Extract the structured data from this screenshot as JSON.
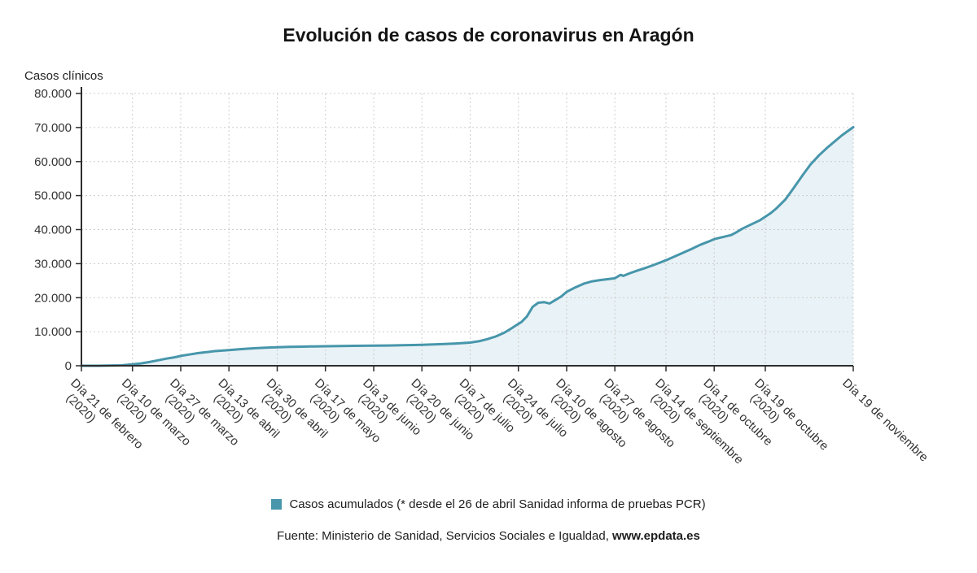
{
  "title": "Evolución de casos de coronavirus en Aragón",
  "y_axis_title": "Casos clínicos",
  "legend": {
    "swatch_color": "#4796ab",
    "label": "Casos acumulados (* desde el 26 de abril Sanidad informa de pruebas PCR)"
  },
  "source": {
    "prefix": "Fuente: Ministerio de Sanidad, Servicios Sociales e Igualdad, ",
    "bold": "www.epdata.es"
  },
  "chart_data": {
    "type": "area",
    "title": "Evolución de casos de coronavirus en Aragón",
    "xlabel": "",
    "ylabel": "Casos clínicos",
    "ylim": [
      0,
      80000
    ],
    "grid": "dotted",
    "legend_position": "bottom",
    "x_unit": "días desde el 21 de febrero de 2020",
    "x_start_label": "Día 21 de febrero (2020)",
    "x_end_label": "Día 19 de noviembre",
    "y_ticks": [
      0,
      10000,
      20000,
      30000,
      40000,
      50000,
      60000,
      70000,
      80000
    ],
    "y_tick_labels": [
      "0",
      "10.000",
      "20.000",
      "30.000",
      "40.000",
      "50.000",
      "60.000",
      "70.000",
      "80.000"
    ],
    "x_ticks": [
      {
        "day": 0,
        "label": "Día 21 de febrero",
        "sub": "(2020)"
      },
      {
        "day": 18,
        "label": "Día 10 de marzo",
        "sub": "(2020)"
      },
      {
        "day": 35,
        "label": "Día 27 de marzo",
        "sub": "(2020)"
      },
      {
        "day": 52,
        "label": "Día 13 de abril",
        "sub": "(2020)"
      },
      {
        "day": 69,
        "label": "Día 30 de abril",
        "sub": "(2020)"
      },
      {
        "day": 86,
        "label": "Día 17 de mayo",
        "sub": "(2020)"
      },
      {
        "day": 103,
        "label": "Día 3 de junio",
        "sub": "(2020)"
      },
      {
        "day": 120,
        "label": "Día 20 de junio",
        "sub": "(2020)"
      },
      {
        "day": 137,
        "label": "Día 7 de julio",
        "sub": "(2020)"
      },
      {
        "day": 154,
        "label": "Día 24 de julio",
        "sub": "(2020)"
      },
      {
        "day": 171,
        "label": "Día 10 de agosto",
        "sub": "(2020)"
      },
      {
        "day": 188,
        "label": "Día 27 de agosto",
        "sub": "(2020)"
      },
      {
        "day": 206,
        "label": "Día 14 de septiembre",
        "sub": "(2020)"
      },
      {
        "day": 223,
        "label": "Día 1 de octubre",
        "sub": "(2020)"
      },
      {
        "day": 241,
        "label": "Día 19 de octubre",
        "sub": "(2020)"
      },
      {
        "day": 272,
        "label": "Día 19 de noviembre",
        "sub": ""
      }
    ],
    "series": [
      {
        "name": "Casos acumulados (* desde el 26 de abril Sanidad informa de pruebas PCR)",
        "color": "#4796ab",
        "fill": "#e9f2f6",
        "points": [
          [
            0,
            0
          ],
          [
            6,
            10
          ],
          [
            10,
            40
          ],
          [
            14,
            120
          ],
          [
            18,
            400
          ],
          [
            21,
            700
          ],
          [
            24,
            1100
          ],
          [
            27,
            1600
          ],
          [
            30,
            2100
          ],
          [
            33,
            2500
          ],
          [
            35,
            2900
          ],
          [
            38,
            3300
          ],
          [
            41,
            3700
          ],
          [
            44,
            4000
          ],
          [
            47,
            4300
          ],
          [
            50,
            4500
          ],
          [
            52,
            4600
          ],
          [
            55,
            4800
          ],
          [
            58,
            5000
          ],
          [
            62,
            5200
          ],
          [
            66,
            5350
          ],
          [
            69,
            5450
          ],
          [
            73,
            5550
          ],
          [
            78,
            5620
          ],
          [
            82,
            5680
          ],
          [
            86,
            5720
          ],
          [
            91,
            5780
          ],
          [
            96,
            5840
          ],
          [
            103,
            5900
          ],
          [
            108,
            5950
          ],
          [
            113,
            6020
          ],
          [
            117,
            6080
          ],
          [
            120,
            6150
          ],
          [
            124,
            6250
          ],
          [
            128,
            6400
          ],
          [
            132,
            6550
          ],
          [
            137,
            6800
          ],
          [
            140,
            7200
          ],
          [
            143,
            7800
          ],
          [
            146,
            8600
          ],
          [
            149,
            9700
          ],
          [
            151,
            10700
          ],
          [
            153,
            11800
          ],
          [
            155,
            12800
          ],
          [
            157,
            14500
          ],
          [
            159,
            17300
          ],
          [
            161,
            18500
          ],
          [
            163,
            18700
          ],
          [
            165,
            18300
          ],
          [
            167,
            19300
          ],
          [
            169,
            20300
          ],
          [
            171,
            21700
          ],
          [
            174,
            23000
          ],
          [
            177,
            24100
          ],
          [
            180,
            24800
          ],
          [
            183,
            25200
          ],
          [
            186,
            25500
          ],
          [
            188,
            25700
          ],
          [
            190,
            26700
          ],
          [
            191,
            26400
          ],
          [
            193,
            27100
          ],
          [
            196,
            28000
          ],
          [
            199,
            28800
          ],
          [
            202,
            29700
          ],
          [
            206,
            31000
          ],
          [
            209,
            32100
          ],
          [
            212,
            33200
          ],
          [
            215,
            34300
          ],
          [
            218,
            35500
          ],
          [
            221,
            36500
          ],
          [
            223,
            37200
          ],
          [
            226,
            37800
          ],
          [
            229,
            38400
          ],
          [
            231,
            39300
          ],
          [
            233,
            40300
          ],
          [
            236,
            41500
          ],
          [
            239,
            42700
          ],
          [
            241,
            43800
          ],
          [
            243,
            44900
          ],
          [
            245,
            46300
          ],
          [
            248,
            48800
          ],
          [
            251,
            52200
          ],
          [
            254,
            55800
          ],
          [
            257,
            59200
          ],
          [
            260,
            61900
          ],
          [
            263,
            64200
          ],
          [
            266,
            66300
          ],
          [
            268,
            67700
          ],
          [
            270,
            68900
          ],
          [
            272,
            70100
          ]
        ]
      }
    ]
  }
}
